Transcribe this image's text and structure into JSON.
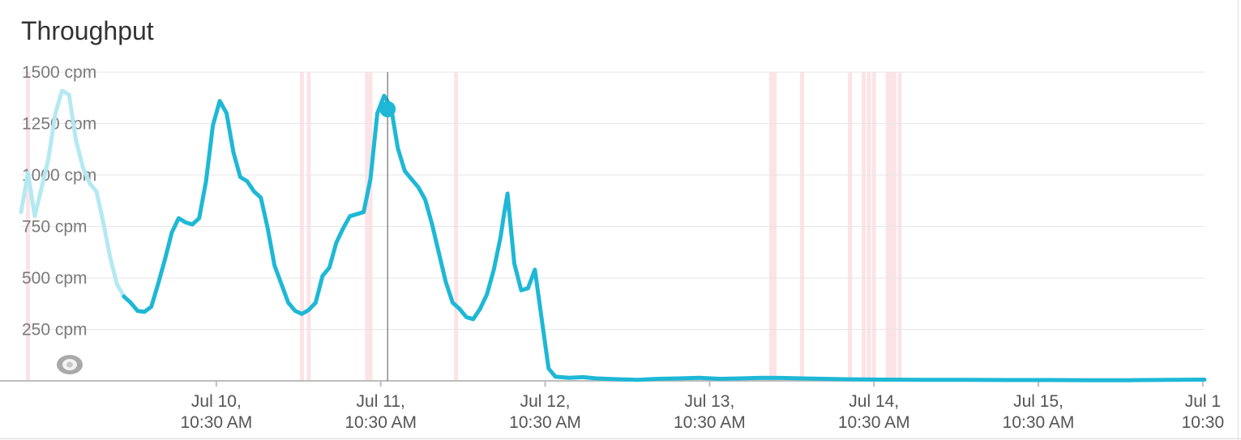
{
  "header": {
    "title": "Throughput"
  },
  "chart_data": {
    "type": "line",
    "title": "Throughput",
    "ylabel": "",
    "xlabel": "",
    "y_unit": "cpm",
    "ylim": [
      0,
      1500
    ],
    "grid": true,
    "legend": "none",
    "y_ticks": [
      {
        "value": 250,
        "label": "250 cpm"
      },
      {
        "value": 500,
        "label": "500 cpm"
      },
      {
        "value": 750,
        "label": "750 cpm"
      },
      {
        "value": 1000,
        "label": "1000 cpm"
      },
      {
        "value": 1250,
        "label": "1250 cpm"
      },
      {
        "value": 1500,
        "label": "1500 cpm"
      }
    ],
    "x_range": [
      "2017-07-09T06:00",
      "2017-07-16T10:45"
    ],
    "x_ticks": [
      {
        "t": "2017-07-10T10:30",
        "line1": "Jul 10,",
        "line2": "10:30 AM"
      },
      {
        "t": "2017-07-11T10:30",
        "line1": "Jul 11,",
        "line2": "10:30 AM"
      },
      {
        "t": "2017-07-12T10:30",
        "line1": "Jul 12,",
        "line2": "10:30 AM"
      },
      {
        "t": "2017-07-13T10:30",
        "line1": "Jul 13,",
        "line2": "10:30 AM"
      },
      {
        "t": "2017-07-14T10:30",
        "line1": "Jul 14,",
        "line2": "10:30 AM"
      },
      {
        "t": "2017-07-15T10:30",
        "line1": "Jul 15,",
        "line2": "10:30 AM"
      },
      {
        "t": "2017-07-16T10:30",
        "line1": "Jul 1",
        "line2": "10:30"
      }
    ],
    "series": [
      {
        "faded_until": "2017-07-09T21:30",
        "color": "#1eb8d6",
        "faded_color": "#b4e9f2",
        "points": [
          [
            "2017-07-09T06:00",
            820
          ],
          [
            "2017-07-09T07:00",
            1010
          ],
          [
            "2017-07-09T08:00",
            800
          ],
          [
            "2017-07-09T09:00",
            940
          ],
          [
            "2017-07-09T10:00",
            1080
          ],
          [
            "2017-07-09T11:00",
            1300
          ],
          [
            "2017-07-09T12:00",
            1410
          ],
          [
            "2017-07-09T13:00",
            1390
          ],
          [
            "2017-07-09T14:00",
            1170
          ],
          [
            "2017-07-09T15:00",
            1040
          ],
          [
            "2017-07-09T16:00",
            960
          ],
          [
            "2017-07-09T17:00",
            920
          ],
          [
            "2017-07-09T18:00",
            770
          ],
          [
            "2017-07-09T19:00",
            600
          ],
          [
            "2017-07-09T20:00",
            470
          ],
          [
            "2017-07-09T21:00",
            410
          ],
          [
            "2017-07-09T22:00",
            380
          ],
          [
            "2017-07-09T23:00",
            340
          ],
          [
            "2017-07-10T00:00",
            335
          ],
          [
            "2017-07-10T01:00",
            360
          ],
          [
            "2017-07-10T02:00",
            470
          ],
          [
            "2017-07-10T03:00",
            590
          ],
          [
            "2017-07-10T04:00",
            720
          ],
          [
            "2017-07-10T05:00",
            790
          ],
          [
            "2017-07-10T06:00",
            770
          ],
          [
            "2017-07-10T07:00",
            760
          ],
          [
            "2017-07-10T08:00",
            790
          ],
          [
            "2017-07-10T09:00",
            970
          ],
          [
            "2017-07-10T10:00",
            1240
          ],
          [
            "2017-07-10T11:00",
            1360
          ],
          [
            "2017-07-10T12:00",
            1300
          ],
          [
            "2017-07-10T13:00",
            1110
          ],
          [
            "2017-07-10T14:00",
            990
          ],
          [
            "2017-07-10T15:00",
            970
          ],
          [
            "2017-07-10T16:00",
            920
          ],
          [
            "2017-07-10T17:00",
            890
          ],
          [
            "2017-07-10T18:00",
            740
          ],
          [
            "2017-07-10T19:00",
            560
          ],
          [
            "2017-07-10T20:00",
            470
          ],
          [
            "2017-07-10T21:00",
            380
          ],
          [
            "2017-07-10T22:00",
            340
          ],
          [
            "2017-07-10T23:00",
            325
          ],
          [
            "2017-07-11T00:00",
            345
          ],
          [
            "2017-07-11T01:00",
            380
          ],
          [
            "2017-07-11T02:00",
            510
          ],
          [
            "2017-07-11T03:00",
            550
          ],
          [
            "2017-07-11T04:00",
            670
          ],
          [
            "2017-07-11T05:00",
            740
          ],
          [
            "2017-07-11T06:00",
            800
          ],
          [
            "2017-07-11T07:00",
            810
          ],
          [
            "2017-07-11T08:00",
            820
          ],
          [
            "2017-07-11T09:00",
            980
          ],
          [
            "2017-07-11T10:00",
            1300
          ],
          [
            "2017-07-11T11:00",
            1385
          ],
          [
            "2017-07-11T12:00",
            1330
          ],
          [
            "2017-07-11T13:00",
            1130
          ],
          [
            "2017-07-11T14:00",
            1020
          ],
          [
            "2017-07-11T15:00",
            980
          ],
          [
            "2017-07-11T16:00",
            940
          ],
          [
            "2017-07-11T17:00",
            880
          ],
          [
            "2017-07-11T18:00",
            760
          ],
          [
            "2017-07-11T19:00",
            620
          ],
          [
            "2017-07-11T20:00",
            480
          ],
          [
            "2017-07-11T21:00",
            380
          ],
          [
            "2017-07-11T22:00",
            350
          ],
          [
            "2017-07-11T23:00",
            310
          ],
          [
            "2017-07-12T00:00",
            300
          ],
          [
            "2017-07-12T01:00",
            350
          ],
          [
            "2017-07-12T02:00",
            420
          ],
          [
            "2017-07-12T03:00",
            540
          ],
          [
            "2017-07-12T04:00",
            700
          ],
          [
            "2017-07-12T04:30",
            810
          ],
          [
            "2017-07-12T05:00",
            910
          ],
          [
            "2017-07-12T06:00",
            570
          ],
          [
            "2017-07-12T07:00",
            440
          ],
          [
            "2017-07-12T08:00",
            450
          ],
          [
            "2017-07-12T09:00",
            540
          ],
          [
            "2017-07-12T10:00",
            300
          ],
          [
            "2017-07-12T11:00",
            60
          ],
          [
            "2017-07-12T12:00",
            20
          ],
          [
            "2017-07-12T14:00",
            15
          ],
          [
            "2017-07-12T16:00",
            18
          ],
          [
            "2017-07-12T18:00",
            12
          ],
          [
            "2017-07-12T21:00",
            8
          ],
          [
            "2017-07-13T00:00",
            5
          ],
          [
            "2017-07-13T03:00",
            10
          ],
          [
            "2017-07-13T06:00",
            12
          ],
          [
            "2017-07-13T09:00",
            15
          ],
          [
            "2017-07-13T12:00",
            10
          ],
          [
            "2017-07-13T15:00",
            12
          ],
          [
            "2017-07-13T18:00",
            15
          ],
          [
            "2017-07-13T21:00",
            14
          ],
          [
            "2017-07-14T00:00",
            12
          ],
          [
            "2017-07-14T06:00",
            8
          ],
          [
            "2017-07-14T12:00",
            6
          ],
          [
            "2017-07-14T18:00",
            5
          ],
          [
            "2017-07-15T00:00",
            5
          ],
          [
            "2017-07-15T06:00",
            4
          ],
          [
            "2017-07-15T12:00",
            4
          ],
          [
            "2017-07-15T18:00",
            3
          ],
          [
            "2017-07-16T00:00",
            3
          ],
          [
            "2017-07-16T06:00",
            5
          ],
          [
            "2017-07-16T10:45",
            6
          ]
        ]
      }
    ],
    "hover_point": [
      "2017-07-11T11:30",
      1320
    ],
    "incident_markers": [
      "2017-07-09T07:00",
      "2017-07-10T23:00",
      "2017-07-11T00:00",
      "2017-07-11T08:30",
      "2017-07-11T09:00",
      "2017-07-11T21:30",
      "2017-07-13T19:30",
      "2017-07-13T20:00",
      "2017-07-14T00:00",
      "2017-07-14T07:00",
      "2017-07-14T09:00",
      "2017-07-14T09:45",
      "2017-07-14T10:30",
      "2017-07-14T12:30",
      "2017-07-14T13:00",
      "2017-07-14T13:30",
      "2017-07-14T14:15"
    ],
    "colors": {
      "line": "#1eb8d6",
      "line_faded": "#b4e9f2",
      "incident": "#fce3e6",
      "grid": "#e6e6e6",
      "axis": "#bdbdbd",
      "cursor": "#555555"
    }
  }
}
